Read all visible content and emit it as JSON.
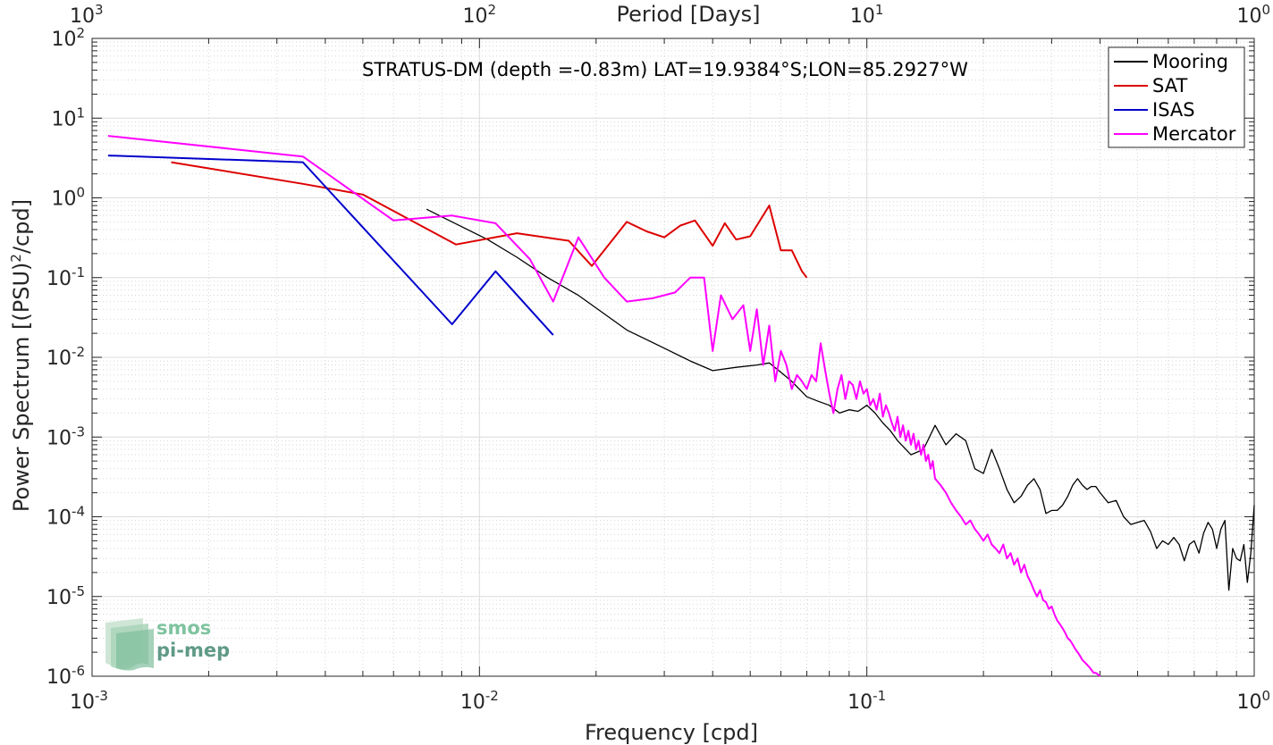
{
  "chart_data": {
    "type": "line",
    "title": "STRATUS-DM (depth =-0.83m) LAT=19.9384°S;LON=85.2927°W",
    "xlabel": "Frequency [cpd]",
    "ylabel": "Power Spectrum [(PSU)",
    "ylabel_sup": "2",
    "ylabel_tail": "/cpd]",
    "top_xlabel": "Period [Days]",
    "x_scale": "log",
    "y_scale": "log",
    "xlim": [
      0.001,
      1
    ],
    "ylim": [
      1e-06,
      100
    ],
    "grid": true,
    "legend_position": "top-right",
    "x_ticks": [
      {
        "value": 0.001,
        "base": "10",
        "exp": "-3"
      },
      {
        "value": 0.01,
        "base": "10",
        "exp": "-2"
      },
      {
        "value": 0.1,
        "base": "10",
        "exp": "-1"
      },
      {
        "value": 1,
        "base": "10",
        "exp": "0"
      }
    ],
    "top_ticks": [
      {
        "value": 0.001,
        "base": "10",
        "exp": "3"
      },
      {
        "value": 0.01,
        "base": "10",
        "exp": "2"
      },
      {
        "value": 0.1,
        "base": "10",
        "exp": "1"
      },
      {
        "value": 1,
        "base": "10",
        "exp": "0"
      }
    ],
    "y_ticks": [
      {
        "value": 100,
        "base": "10",
        "exp": "2"
      },
      {
        "value": 10,
        "base": "10",
        "exp": "1"
      },
      {
        "value": 1,
        "base": "10",
        "exp": "0"
      },
      {
        "value": 0.1,
        "base": "10",
        "exp": "-1"
      },
      {
        "value": 0.01,
        "base": "10",
        "exp": "-2"
      },
      {
        "value": 0.001,
        "base": "10",
        "exp": "-3"
      },
      {
        "value": 0.0001,
        "base": "10",
        "exp": "-4"
      },
      {
        "value": 1e-05,
        "base": "10",
        "exp": "-5"
      },
      {
        "value": 1e-06,
        "base": "10",
        "exp": "-6"
      }
    ],
    "series": [
      {
        "name": "Mooring",
        "color": "#000000",
        "x": [
          0.0073,
          0.0085,
          0.0105,
          0.0125,
          0.015,
          0.018,
          0.021,
          0.024,
          0.03,
          0.035,
          0.04,
          0.046,
          0.052,
          0.056,
          0.06,
          0.064,
          0.07,
          0.075,
          0.08,
          0.085,
          0.09,
          0.095,
          0.1,
          0.105,
          0.11,
          0.115,
          0.12,
          0.13,
          0.14,
          0.15,
          0.16,
          0.17,
          0.18,
          0.19,
          0.2,
          0.21,
          0.22,
          0.23,
          0.24,
          0.25,
          0.26,
          0.27,
          0.28,
          0.29,
          0.3,
          0.31,
          0.32,
          0.33,
          0.34,
          0.35,
          0.36,
          0.37,
          0.38,
          0.39,
          0.4,
          0.42,
          0.44,
          0.46,
          0.48,
          0.5,
          0.52,
          0.54,
          0.56,
          0.58,
          0.6,
          0.62,
          0.64,
          0.66,
          0.68,
          0.7,
          0.72,
          0.74,
          0.76,
          0.78,
          0.8,
          0.82,
          0.84,
          0.86,
          0.88,
          0.9,
          0.92,
          0.94,
          0.96,
          0.98,
          1.0
        ],
        "y": [
          0.72,
          0.5,
          0.3,
          0.18,
          0.1,
          0.06,
          0.035,
          0.022,
          0.013,
          0.009,
          0.0068,
          0.0075,
          0.008,
          0.0085,
          0.0065,
          0.005,
          0.0032,
          0.0028,
          0.0025,
          0.002,
          0.0022,
          0.0021,
          0.0025,
          0.002,
          0.0015,
          0.0012,
          0.0009,
          0.0006,
          0.0007,
          0.0014,
          0.0008,
          0.0011,
          0.0009,
          0.0004,
          0.00035,
          0.0007,
          0.0004,
          0.00022,
          0.00015,
          0.00018,
          0.00025,
          0.0003,
          0.00022,
          0.00011,
          0.00012,
          0.00012,
          0.00014,
          0.00018,
          0.00025,
          0.0003,
          0.00025,
          0.00022,
          0.00024,
          0.00024,
          0.0002,
          0.00015,
          0.00016,
          0.0001,
          8e-05,
          8.5e-05,
          9e-05,
          6.5e-05,
          4e-05,
          5e-05,
          4.5e-05,
          5.5e-05,
          4.5e-05,
          2.8e-05,
          4.5e-05,
          5e-05,
          3.5e-05,
          6.2e-05,
          8.5e-05,
          7e-05,
          4e-05,
          7e-05,
          9e-05,
          1.2e-05,
          4e-05,
          3e-05,
          2.8e-05,
          4.5e-05,
          1.5e-05,
          3.5e-05,
          0.00014
        ]
      },
      {
        "name": "SAT",
        "color": "#dd0000",
        "x": [
          0.0016,
          0.0035,
          0.005,
          0.0087,
          0.0125,
          0.017,
          0.0195,
          0.024,
          0.027,
          0.03,
          0.033,
          0.036,
          0.04,
          0.043,
          0.046,
          0.05,
          0.056,
          0.06,
          0.064,
          0.068,
          0.07
        ],
        "y": [
          2.8,
          1.5,
          1.1,
          0.26,
          0.36,
          0.29,
          0.14,
          0.5,
          0.38,
          0.32,
          0.45,
          0.52,
          0.25,
          0.48,
          0.3,
          0.33,
          0.8,
          0.22,
          0.22,
          0.12,
          0.1
        ]
      },
      {
        "name": "ISAS",
        "color": "#0000cc",
        "x": [
          0.0011,
          0.0035,
          0.0085,
          0.011,
          0.0155
        ],
        "y": [
          3.4,
          2.8,
          0.026,
          0.12,
          0.019
        ]
      },
      {
        "name": "Mercator",
        "color": "#ff00ff",
        "x": [
          0.0011,
          0.0035,
          0.006,
          0.0085,
          0.011,
          0.0135,
          0.0155,
          0.018,
          0.021,
          0.024,
          0.028,
          0.032,
          0.035,
          0.038,
          0.04,
          0.042,
          0.045,
          0.048,
          0.05,
          0.052,
          0.054,
          0.056,
          0.058,
          0.06,
          0.062,
          0.064,
          0.066,
          0.068,
          0.07,
          0.072,
          0.074,
          0.076,
          0.078,
          0.08,
          0.082,
          0.084,
          0.086,
          0.088,
          0.09,
          0.092,
          0.094,
          0.096,
          0.098,
          0.1,
          0.102,
          0.104,
          0.106,
          0.108,
          0.11,
          0.112,
          0.114,
          0.116,
          0.118,
          0.12,
          0.122,
          0.124,
          0.126,
          0.128,
          0.13,
          0.132,
          0.134,
          0.136,
          0.138,
          0.14,
          0.142,
          0.144,
          0.146,
          0.148,
          0.15,
          0.155,
          0.16,
          0.165,
          0.17,
          0.175,
          0.18,
          0.185,
          0.19,
          0.195,
          0.2,
          0.205,
          0.21,
          0.215,
          0.22,
          0.225,
          0.23,
          0.235,
          0.24,
          0.245,
          0.25,
          0.255,
          0.26,
          0.265,
          0.27,
          0.275,
          0.28,
          0.285,
          0.29,
          0.295,
          0.3,
          0.305,
          0.31,
          0.315,
          0.32,
          0.325,
          0.33,
          0.335,
          0.34,
          0.345,
          0.35,
          0.355,
          0.36,
          0.365,
          0.37,
          0.375,
          0.38,
          0.385,
          0.39,
          0.395,
          0.4
        ],
        "y": [
          6,
          3.3,
          0.52,
          0.6,
          0.48,
          0.17,
          0.05,
          0.32,
          0.1,
          0.05,
          0.055,
          0.065,
          0.1,
          0.1,
          0.012,
          0.06,
          0.03,
          0.045,
          0.012,
          0.04,
          0.008,
          0.025,
          0.005,
          0.012,
          0.008,
          0.004,
          0.006,
          0.005,
          0.004,
          0.006,
          0.005,
          0.015,
          0.007,
          0.0035,
          0.002,
          0.004,
          0.006,
          0.003,
          0.005,
          0.0045,
          0.003,
          0.005,
          0.0035,
          0.004,
          0.0025,
          0.003,
          0.0022,
          0.0035,
          0.0018,
          0.0025,
          0.002,
          0.0015,
          0.0012,
          0.0018,
          0.001,
          0.0014,
          0.0009,
          0.0012,
          0.0008,
          0.0011,
          0.0007,
          0.0009,
          0.0006,
          0.0008,
          0.0005,
          0.0006,
          0.0004,
          0.0005,
          0.0003,
          0.00025,
          0.0002,
          0.00015,
          0.00012,
          0.0001,
          8e-05,
          9e-05,
          7e-05,
          6e-05,
          5e-05,
          6e-05,
          4.5e-05,
          4e-05,
          3.5e-05,
          4.5e-05,
          3e-05,
          3.5e-05,
          2.5e-05,
          3e-05,
          2e-05,
          2.5e-05,
          1.8e-05,
          1.5e-05,
          1.2e-05,
          1e-05,
          1.2e-05,
          9e-06,
          8.5e-06,
          7e-06,
          7.5e-06,
          6e-06,
          5e-06,
          4.5e-06,
          4e-06,
          3.5e-06,
          3e-06,
          2.8e-06,
          2.5e-06,
          2.2e-06,
          2e-06,
          1.8e-06,
          1.6e-06,
          1.5e-06,
          1.4e-06,
          1.3e-06,
          1.2e-06,
          1.1e-06,
          1.1e-06,
          1.05e-06,
          1e-06
        ]
      }
    ]
  },
  "logo": {
    "line1": "smos",
    "line2": "pi-mep",
    "color": "#5fae8a"
  }
}
